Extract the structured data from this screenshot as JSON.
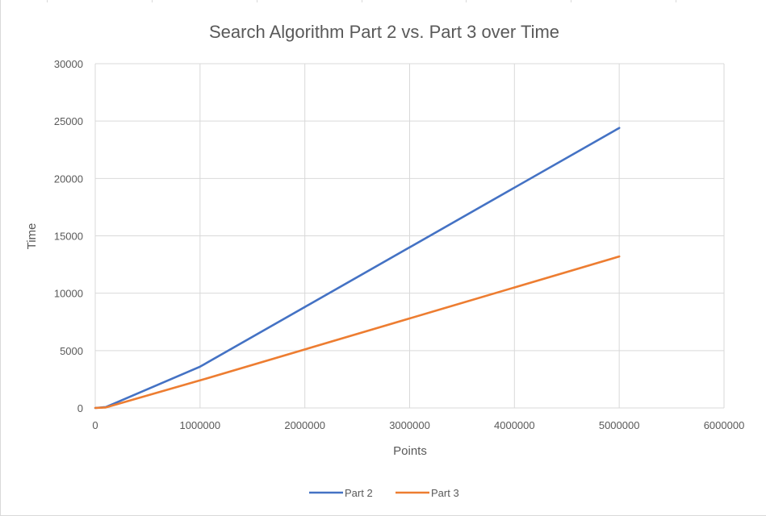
{
  "chart_data": {
    "type": "line",
    "title": "Search Algorithm Part 2 vs. Part 3 over Time",
    "xlabel": "Points",
    "ylabel": "Time",
    "xlim": [
      0,
      6000000
    ],
    "ylim": [
      0,
      30000
    ],
    "x_ticks": [
      0,
      1000000,
      2000000,
      3000000,
      4000000,
      5000000,
      6000000
    ],
    "y_ticks": [
      0,
      5000,
      10000,
      15000,
      20000,
      25000,
      30000
    ],
    "x_tick_labels": [
      "0",
      "1000000",
      "2000000",
      "3000000",
      "4000000",
      "5000000",
      "6000000"
    ],
    "y_tick_labels": [
      "0",
      "5000",
      "10000",
      "15000",
      "20000",
      "25000",
      "30000"
    ],
    "grid": true,
    "legend_position": "bottom",
    "series": [
      {
        "name": "Part 2",
        "color": "#4472C4",
        "points": [
          [
            0,
            0
          ],
          [
            100000,
            80
          ],
          [
            1000000,
            3600
          ],
          [
            5000000,
            24400
          ]
        ]
      },
      {
        "name": "Part 3",
        "color": "#ED7D31",
        "points": [
          [
            0,
            0
          ],
          [
            100000,
            40
          ],
          [
            1000000,
            2400
          ],
          [
            5000000,
            13200
          ]
        ]
      }
    ]
  }
}
